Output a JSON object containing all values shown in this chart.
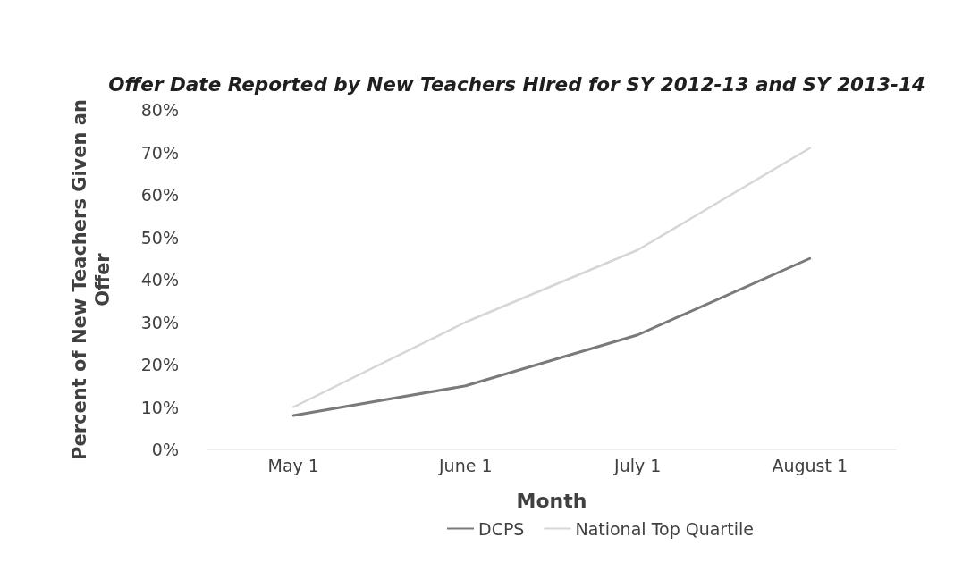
{
  "chart_data": {
    "type": "line",
    "title": "Offer Date Reported by New Teachers Hired for SY 2012-13 and SY 2013-14",
    "xlabel": "Month",
    "ylabel": "Percent of New Teachers Given an Offer",
    "categories": [
      "May 1",
      "June 1",
      "July 1",
      "August 1"
    ],
    "series": [
      {
        "name": "DCPS",
        "color": "#7a7a7a",
        "values": [
          8,
          15,
          27,
          45
        ]
      },
      {
        "name": "National Top Quartile",
        "color": "#d6d6d6",
        "values": [
          10,
          30,
          47,
          71
        ]
      }
    ],
    "ylim": [
      0,
      80
    ],
    "yticks": [
      {
        "value": 0,
        "label": "0%"
      },
      {
        "value": 10,
        "label": "10%"
      },
      {
        "value": 20,
        "label": "20%"
      },
      {
        "value": 30,
        "label": "30%"
      },
      {
        "value": 40,
        "label": "40%"
      },
      {
        "value": 50,
        "label": "50%"
      },
      {
        "value": 60,
        "label": "60%"
      },
      {
        "value": 70,
        "label": "70%"
      },
      {
        "value": 80,
        "label": "80%"
      }
    ],
    "legend": "bottom",
    "marker": "none",
    "line_style": "solid"
  }
}
